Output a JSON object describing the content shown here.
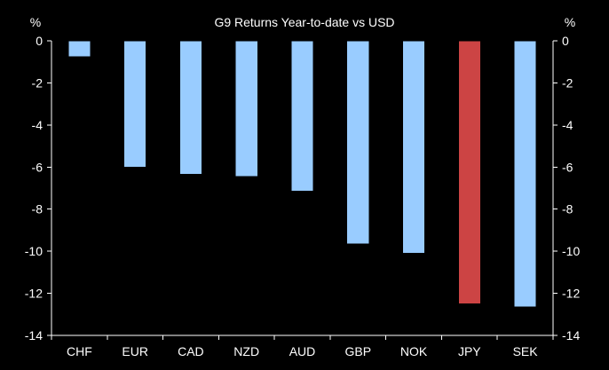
{
  "chart_data": {
    "type": "bar",
    "title": "G9 Returns Year-to-date vs USD",
    "left_unit": "%",
    "right_unit": "%",
    "categories": [
      "CHF",
      "EUR",
      "CAD",
      "NZD",
      "AUD",
      "GBP",
      "NOK",
      "JPY",
      "SEK"
    ],
    "values": [
      -0.75,
      -6.0,
      -6.35,
      -6.45,
      -7.15,
      -9.65,
      -10.1,
      -12.5,
      -12.65
    ],
    "highlight_category": "JPY",
    "ylim": [
      -14,
      0
    ],
    "yticks": [
      0,
      -2,
      -4,
      -6,
      -8,
      -10,
      -12,
      -14
    ],
    "colors": {
      "bar": "#99ccff",
      "highlight": "#cc4444",
      "axis": "#ffffff",
      "text": "#ffffff",
      "background": "#000000"
    }
  }
}
